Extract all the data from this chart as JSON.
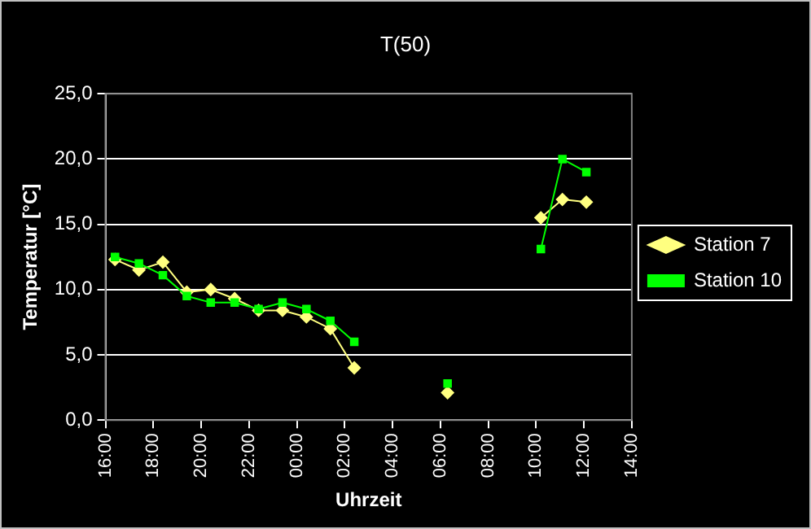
{
  "chart_data": {
    "type": "line",
    "title": "T(50)",
    "xlabel": "Uhrzeit",
    "ylabel": "Temperatur [°C]",
    "x": [
      "2000-01-01T16:24",
      "2000-01-01T17:24",
      "2000-01-01T18:24",
      "2000-01-01T19:24",
      "2000-01-01T20:24",
      "2000-01-01T21:24",
      "2000-01-01T22:24",
      "2000-01-01T23:24",
      "2000-01-02T00:24",
      "2000-01-02T01:24",
      "2000-01-02T02:24",
      "2000-01-02T04:24",
      "2000-01-02T06:18",
      "2000-01-02T08:12",
      "2000-01-02T10:12",
      "2000-01-02T11:06",
      "2000-01-02T12:06"
    ],
    "series": [
      {
        "name": "Station 7",
        "color": "#ffff80",
        "marker": "diamond",
        "values": [
          12.3,
          11.5,
          12.1,
          9.8,
          10.0,
          9.3,
          8.4,
          8.4,
          7.9,
          7.0,
          4.0,
          null,
          2.1,
          null,
          15.5,
          16.9,
          16.7
        ]
      },
      {
        "name": "Station 10",
        "color": "#00ff00",
        "marker": "square",
        "values": [
          12.5,
          12.0,
          11.1,
          9.5,
          9.0,
          9.0,
          8.5,
          9.0,
          8.5,
          7.6,
          6.0,
          null,
          2.8,
          null,
          13.1,
          20.0,
          19.0
        ]
      }
    ],
    "xlim": [
      "2000-01-01T16:00",
      "2000-01-02T14:00"
    ],
    "xticks": [
      {
        "value": "2000-01-01T16:00",
        "label": "16:00"
      },
      {
        "value": "2000-01-01T18:00",
        "label": "18:00"
      },
      {
        "value": "2000-01-01T20:00",
        "label": "20:00"
      },
      {
        "value": "2000-01-01T22:00",
        "label": "22:00"
      },
      {
        "value": "2000-01-02T00:00",
        "label": "00:00"
      },
      {
        "value": "2000-01-02T02:00",
        "label": "02:00"
      },
      {
        "value": "2000-01-02T04:00",
        "label": "04:00"
      },
      {
        "value": "2000-01-02T06:00",
        "label": "06:00"
      },
      {
        "value": "2000-01-02T08:00",
        "label": "08:00"
      },
      {
        "value": "2000-01-02T10:00",
        "label": "10:00"
      },
      {
        "value": "2000-01-02T12:00",
        "label": "12:00"
      },
      {
        "value": "2000-01-02T14:00",
        "label": "14:00"
      }
    ],
    "ylim": [
      0,
      25
    ],
    "yticks": [
      {
        "value": 0,
        "label": "0,0"
      },
      {
        "value": 5,
        "label": "5,0"
      },
      {
        "value": 10,
        "label": "10,0"
      },
      {
        "value": 15,
        "label": "15,0"
      },
      {
        "value": 20,
        "label": "20,0"
      },
      {
        "value": 25,
        "label": "25,0"
      }
    ],
    "grid": "y",
    "legend": "right",
    "line_style": "solid"
  }
}
